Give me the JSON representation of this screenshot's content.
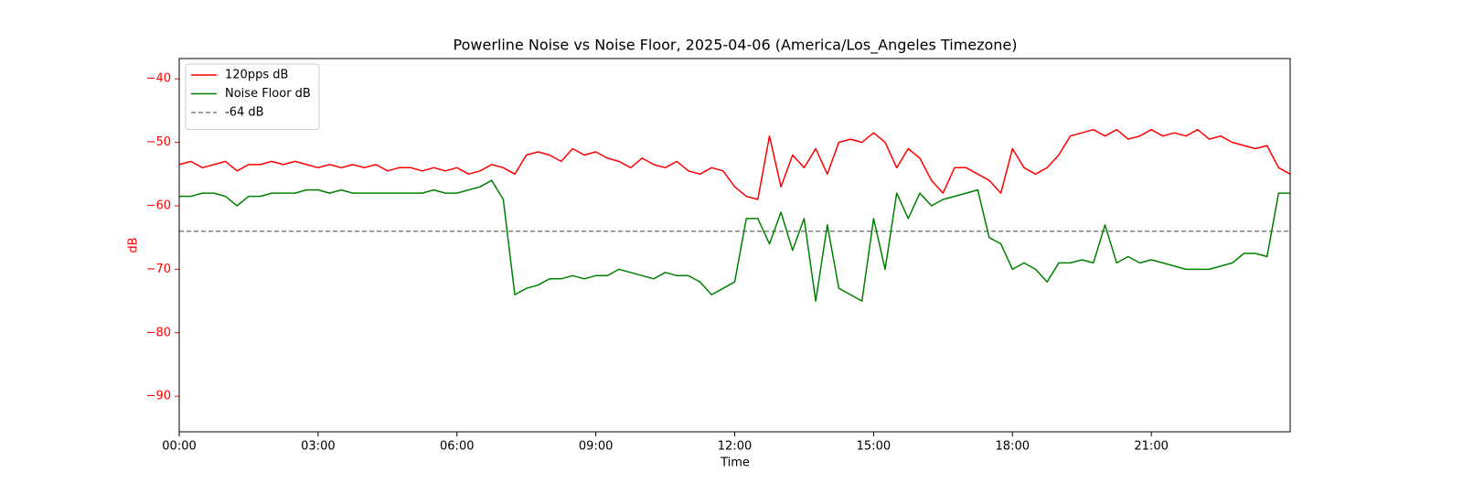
{
  "chart_data": {
    "type": "line",
    "title": "Powerline Noise vs Noise Floor, 2025-04-06 (America/Los_Angeles Timezone)",
    "xlabel": "Time",
    "ylabel": "dB",
    "ylabel_color": "red",
    "ytick_color": "red",
    "legend": "upper left",
    "x": [
      0,
      0.25,
      0.5,
      0.75,
      1,
      1.25,
      1.5,
      1.75,
      2,
      2.25,
      2.5,
      2.75,
      3,
      3.25,
      3.5,
      3.75,
      4,
      4.25,
      4.5,
      4.75,
      5,
      5.25,
      5.5,
      5.75,
      6,
      6.25,
      6.5,
      6.75,
      7,
      7.25,
      7.5,
      7.75,
      8,
      8.25,
      8.5,
      8.75,
      9,
      9.25,
      9.5,
      9.75,
      10,
      10.25,
      10.5,
      10.75,
      11,
      11.25,
      11.5,
      11.75,
      12,
      12.25,
      12.5,
      12.75,
      13,
      13.25,
      13.5,
      13.75,
      14,
      14.25,
      14.5,
      14.75,
      15,
      15.25,
      15.5,
      15.75,
      16,
      16.25,
      16.5,
      16.75,
      17,
      17.25,
      17.5,
      17.75,
      18,
      18.25,
      18.5,
      18.75,
      19,
      19.25,
      19.5,
      19.75,
      20,
      20.25,
      20.5,
      20.75,
      21,
      21.25,
      21.5,
      21.75,
      22,
      22.25,
      22.5,
      22.75,
      23,
      23.25,
      23.5,
      23.75,
      24
    ],
    "series": [
      {
        "name": "120pps dB",
        "color": "red",
        "values": [
          -53.5,
          -53,
          -54,
          -53.5,
          -53,
          -54.5,
          -53.5,
          -53.5,
          -53,
          -53.5,
          -53,
          -53.5,
          -54,
          -53.5,
          -54,
          -53.5,
          -54,
          -53.5,
          -54.5,
          -54,
          -54,
          -54.5,
          -54,
          -54.5,
          -54,
          -55,
          -54.5,
          -53.5,
          -54,
          -55,
          -52,
          -51.5,
          -52,
          -53,
          -51,
          -52,
          -51.5,
          -52.5,
          -53,
          -54,
          -52.5,
          -53.5,
          -54,
          -53,
          -54.5,
          -55,
          -54,
          -54.5,
          -57,
          -58.5,
          -59,
          -49,
          -57,
          -52,
          -54,
          -51,
          -55,
          -50,
          -49.5,
          -50,
          -48.5,
          -50,
          -54,
          -51,
          -52.5,
          -56,
          -58,
          -54,
          -54,
          -55,
          -56,
          -58,
          -51,
          -54,
          -55,
          -54,
          -52,
          -49,
          -48.5,
          -48,
          -49,
          -48,
          -49.5,
          -49,
          -48,
          -49,
          -48.5,
          -49,
          -48,
          -49.5,
          -49,
          -50,
          -50.5,
          -51,
          -50.5,
          -54,
          -55
        ]
      },
      {
        "name": "Noise Floor dB",
        "color": "green",
        "values": [
          -58.5,
          -58.5,
          -58,
          -58,
          -58.5,
          -60,
          -58.5,
          -58.5,
          -58,
          -58,
          -58,
          -57.5,
          -57.5,
          -58,
          -57.5,
          -58,
          -58,
          -58,
          -58,
          -58,
          -58,
          -58,
          -57.5,
          -58,
          -58,
          -57.5,
          -57,
          -56,
          -59,
          -74,
          -73,
          -72.5,
          -71.5,
          -71.5,
          -71,
          -71.5,
          -71,
          -71,
          -70,
          -70.5,
          -71,
          -71.5,
          -70.5,
          -71,
          -71,
          -72,
          -74,
          -73,
          -72,
          -62,
          -62,
          -66,
          -61,
          -67,
          -62,
          -75,
          -63,
          -73,
          -74,
          -75,
          -62,
          -70,
          -58,
          -62,
          -58,
          -60,
          -59,
          -58.5,
          -58,
          -57.5,
          -65,
          -66,
          -70,
          -69,
          -70,
          -72,
          -69,
          -69,
          -68.5,
          -69,
          -63,
          -69,
          -68,
          -69,
          -68.5,
          -69,
          -69.5,
          -70,
          -70,
          -70,
          -69.5,
          -69,
          -67.5,
          -67.5,
          -68,
          -58,
          -58
        ]
      }
    ],
    "hline": {
      "name": "-64 dB",
      "value": -64,
      "color": "gray",
      "dashed": true
    },
    "xlim": [
      0,
      24
    ],
    "xticks": [
      {
        "value": 0,
        "label": "00:00"
      },
      {
        "value": 3,
        "label": "03:00"
      },
      {
        "value": 6,
        "label": "06:00"
      },
      {
        "value": 9,
        "label": "09:00"
      },
      {
        "value": 12,
        "label": "12:00"
      },
      {
        "value": 15,
        "label": "15:00"
      },
      {
        "value": 18,
        "label": "18:00"
      },
      {
        "value": 21,
        "label": "21:00"
      }
    ],
    "ylim": [
      -95.6,
      -36.8
    ],
    "yticks": [
      {
        "value": -90,
        "label": "−90"
      },
      {
        "value": -80,
        "label": "−80"
      },
      {
        "value": -70,
        "label": "−70"
      },
      {
        "value": -60,
        "label": "−60"
      },
      {
        "value": -50,
        "label": "−50"
      },
      {
        "value": -40,
        "label": "−40"
      }
    ]
  }
}
